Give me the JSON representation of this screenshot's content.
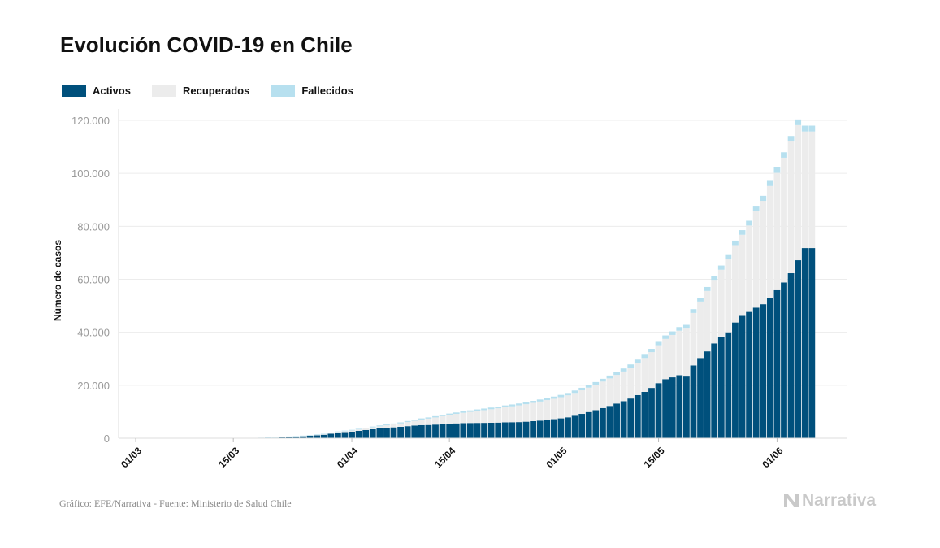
{
  "title": "Evolución COVID-19 en Chile",
  "source": "Gráfico: EFE/Narrativa - Fuente: Ministerio de Salud Chile",
  "brand": "Narrativa",
  "chart_data": {
    "type": "bar",
    "stacked": true,
    "ylabel": "Número de casos",
    "ylim": [
      0,
      120000
    ],
    "yticks": [
      {
        "value": 0,
        "label": "0"
      },
      {
        "value": 20000,
        "label": "20.000"
      },
      {
        "value": 40000,
        "label": "40.000"
      },
      {
        "value": 60000,
        "label": "60.000"
      },
      {
        "value": 80000,
        "label": "80.000"
      },
      {
        "value": 100000,
        "label": "100.000"
      },
      {
        "value": 120000,
        "label": "120.000"
      }
    ],
    "xticks": [
      {
        "index": 2,
        "label": "01/03"
      },
      {
        "index": 16,
        "label": "15/03"
      },
      {
        "index": 33,
        "label": "01/04"
      },
      {
        "index": 47,
        "label": "15/04"
      },
      {
        "index": 63,
        "label": "01/05"
      },
      {
        "index": 77,
        "label": "15/05"
      },
      {
        "index": 94,
        "label": "01/06"
      }
    ],
    "grid": true,
    "legend_position": "top-left",
    "colors": {
      "activos": "#00507c",
      "recuperados": "#ececec",
      "fallecidos": "#b7e0ef"
    },
    "series": [
      {
        "name": "Activos",
        "key": "activos",
        "values": [
          0,
          0,
          0,
          0,
          0,
          0,
          0,
          0,
          0,
          0,
          0,
          0,
          0,
          0,
          0,
          0,
          0,
          0,
          50,
          100,
          150,
          250,
          300,
          400,
          500,
          600,
          750,
          950,
          1100,
          1300,
          1700,
          2050,
          2300,
          2500,
          2800,
          3100,
          3400,
          3700,
          3900,
          4100,
          4300,
          4550,
          4800,
          4950,
          5000,
          5150,
          5350,
          5500,
          5600,
          5700,
          5750,
          5780,
          5800,
          5850,
          5900,
          6000,
          6050,
          6100,
          6250,
          6450,
          6650,
          6900,
          7200,
          7500,
          7900,
          8500,
          9200,
          9900,
          10600,
          11400,
          12200,
          13100,
          14000,
          15000,
          16300,
          17500,
          19000,
          20800,
          22300,
          23000,
          23800,
          23300,
          27500,
          30300,
          32800,
          35800,
          38100,
          40000,
          43700,
          46200,
          47700,
          49300,
          50600,
          53000,
          55900,
          58800,
          62300,
          67200,
          71800,
          71800
        ]
      },
      {
        "name": "Recuperados",
        "key": "recuperados",
        "values": [
          0,
          0,
          0,
          0,
          0,
          0,
          0,
          0,
          0,
          0,
          0,
          0,
          0,
          0,
          0,
          0,
          0,
          0,
          5,
          10,
          20,
          30,
          40,
          60,
          80,
          100,
          120,
          150,
          180,
          210,
          250,
          300,
          350,
          420,
          500,
          600,
          700,
          800,
          950,
          1100,
          1300,
          1550,
          1800,
          2100,
          2400,
          2700,
          3000,
          3300,
          3600,
          3900,
          4200,
          4500,
          4800,
          5100,
          5400,
          5700,
          6000,
          6300,
          6600,
          6900,
          7200,
          7500,
          7700,
          8000,
          8300,
          8600,
          8900,
          9200,
          9600,
          10000,
          10400,
          10800,
          11200,
          11700,
          12200,
          12800,
          13500,
          14300,
          15200,
          16000,
          16800,
          18100,
          19800,
          21300,
          22800,
          24000,
          25500,
          27500,
          29200,
          30600,
          32600,
          36600,
          39000,
          42200,
          44300,
          47100,
          49700,
          51000,
          44000,
          44000
        ]
      },
      {
        "name": "Fallecidos",
        "key": "fallecidos",
        "values": [
          0,
          0,
          0,
          0,
          0,
          0,
          0,
          0,
          0,
          0,
          0,
          0,
          0,
          0,
          0,
          0,
          0,
          0,
          10,
          20,
          30,
          40,
          50,
          60,
          70,
          80,
          100,
          120,
          140,
          160,
          180,
          200,
          220,
          240,
          260,
          280,
          300,
          320,
          340,
          360,
          380,
          400,
          420,
          440,
          460,
          480,
          500,
          520,
          540,
          560,
          580,
          600,
          620,
          640,
          660,
          680,
          700,
          720,
          740,
          760,
          780,
          800,
          830,
          860,
          890,
          920,
          950,
          980,
          1010,
          1040,
          1070,
          1100,
          1130,
          1160,
          1190,
          1220,
          1250,
          1280,
          1310,
          1340,
          1370,
          1400,
          1430,
          1460,
          1500,
          1550,
          1600,
          1650,
          1700,
          1750,
          1800,
          1850,
          1900,
          1950,
          2000,
          2050,
          2100,
          2150,
          2200,
          2200
        ]
      }
    ]
  }
}
